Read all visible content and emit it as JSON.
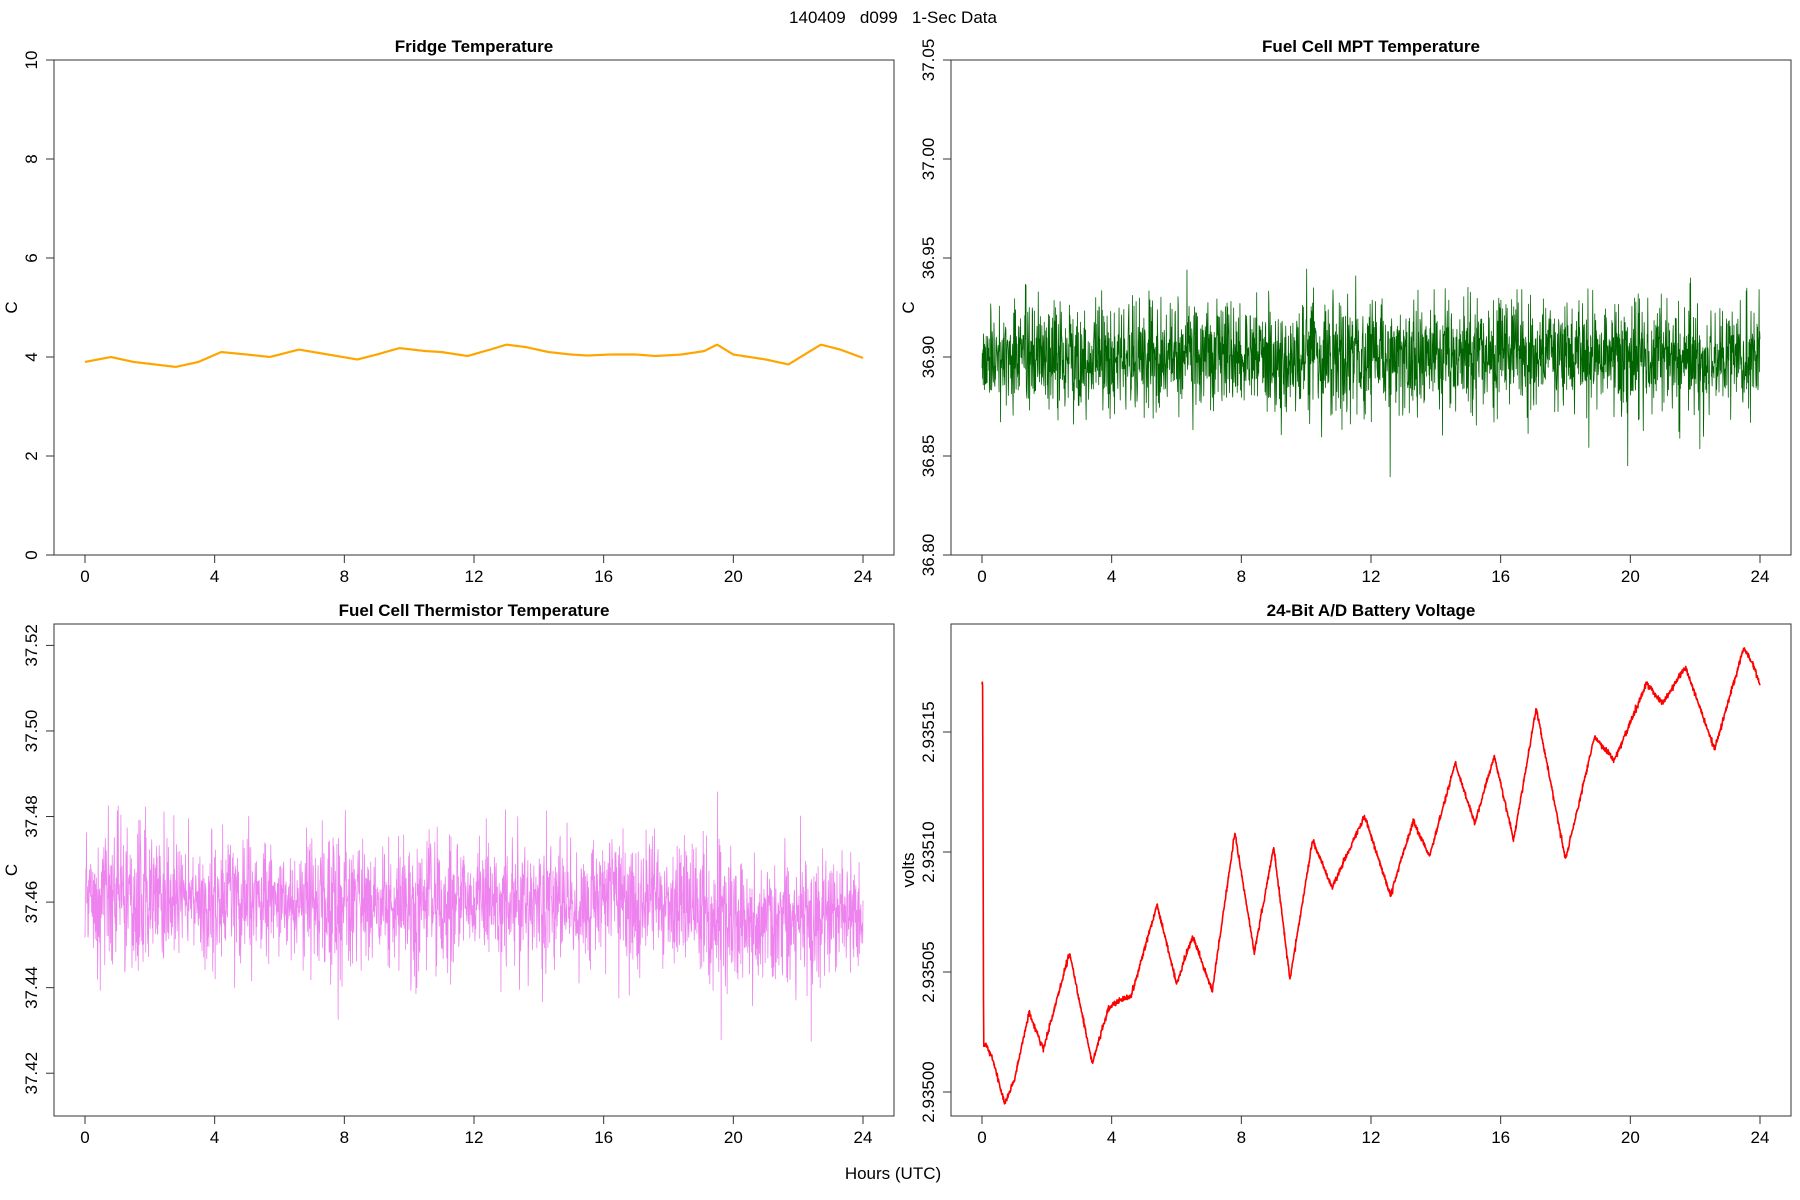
{
  "figure": {
    "main_title": "140409   d099   1-Sec Data",
    "shared_xlabel": "Hours (UTC)"
  },
  "chart_data": [
    {
      "type": "line",
      "title": "Fridge Temperature",
      "ylabel": "C",
      "xlabel": "",
      "xlim": [
        0,
        24
      ],
      "ylim": [
        0,
        10
      ],
      "xticks": [
        0,
        4,
        8,
        12,
        16,
        20,
        24
      ],
      "yticks": [
        0,
        2,
        4,
        6,
        8,
        10
      ],
      "ytick_labels": [
        "0",
        "2",
        "4",
        "6",
        "8",
        "10"
      ],
      "color": "#ffa500",
      "noise": 0,
      "series": [
        {
          "name": "Fridge Temperature",
          "x": [
            0,
            0.8,
            1.5,
            2.8,
            3.5,
            4.2,
            5.0,
            5.7,
            6.6,
            7.5,
            8.4,
            9.0,
            9.7,
            10.5,
            11.0,
            11.8,
            12.5,
            13.0,
            13.6,
            14.3,
            15.0,
            15.5,
            16.2,
            17.0,
            17.6,
            18.4,
            19.1,
            19.5,
            20.0,
            21.0,
            21.7,
            22.2,
            22.7,
            23.3,
            24.0
          ],
          "y": [
            3.9,
            4.0,
            3.9,
            3.8,
            3.9,
            4.1,
            4.05,
            4.0,
            4.15,
            4.05,
            3.95,
            4.05,
            4.18,
            4.12,
            4.1,
            4.02,
            4.15,
            4.25,
            4.2,
            4.1,
            4.05,
            4.03,
            4.05,
            4.05,
            4.02,
            4.05,
            4.12,
            4.25,
            4.05,
            3.95,
            3.85,
            4.05,
            4.25,
            4.15,
            3.98
          ]
        }
      ]
    },
    {
      "type": "line",
      "title": "Fuel Cell MPT Temperature",
      "ylabel": "C",
      "xlabel": "",
      "xlim": [
        0,
        24
      ],
      "ylim": [
        36.8,
        37.05
      ],
      "xticks": [
        0,
        4,
        8,
        12,
        16,
        20,
        24
      ],
      "yticks": [
        36.8,
        36.85,
        36.9,
        36.95,
        37.0,
        37.05
      ],
      "ytick_labels": [
        "36.80",
        "36.85",
        "36.90",
        "36.95",
        "37.00",
        "37.05"
      ],
      "color": "#006400",
      "noise": 0.025,
      "series": [
        {
          "name": "Fuel Cell MPT Temperature",
          "x": [
            0,
            2,
            4,
            6,
            8,
            10,
            12,
            14,
            16,
            18,
            20,
            22,
            24
          ],
          "y": [
            36.9,
            36.9,
            36.9,
            36.9,
            36.9,
            36.9,
            36.9,
            36.9,
            36.9,
            36.9,
            36.9,
            36.9,
            36.9
          ]
        }
      ]
    },
    {
      "type": "line",
      "title": "Fuel Cell Thermistor Temperature",
      "ylabel": "C",
      "xlabel": "",
      "xlim": [
        0,
        24
      ],
      "ylim": [
        37.41,
        37.525
      ],
      "xticks": [
        0,
        4,
        8,
        12,
        16,
        20,
        24
      ],
      "yticks": [
        37.42,
        37.44,
        37.46,
        37.48,
        37.5,
        37.52
      ],
      "ytick_labels": [
        "37.42",
        "37.44",
        "37.46",
        "37.48",
        "37.50",
        "37.52"
      ],
      "color": "#ee82ee",
      "noise": 0.013,
      "series": [
        {
          "name": "Fuel Cell Thermistor Temperature",
          "x": [
            0,
            2,
            4,
            6,
            8,
            10,
            12,
            14,
            16,
            18,
            20,
            22,
            24
          ],
          "y": [
            37.46,
            37.46,
            37.46,
            37.46,
            37.46,
            37.46,
            37.46,
            37.46,
            37.46,
            37.46,
            37.456,
            37.456,
            37.456
          ]
        }
      ]
    },
    {
      "type": "line",
      "title": "24-Bit A/D Battery Voltage",
      "ylabel": "volts",
      "xlabel": "",
      "xlim": [
        0,
        24
      ],
      "ylim": [
        2.93499,
        2.935195
      ],
      "xticks": [
        0,
        4,
        8,
        12,
        16,
        20,
        24
      ],
      "yticks": [
        2.935,
        2.93505,
        2.9351,
        2.93515
      ],
      "ytick_labels": [
        "2.93500",
        "2.93505",
        "2.93510",
        "2.93515"
      ],
      "color": "#ff0000",
      "noise": 6e-07,
      "series": [
        {
          "name": "24-Bit A/D Battery Voltage",
          "x": [
            0,
            0.02,
            0.05,
            0.1,
            0.3,
            0.7,
            1.0,
            1.45,
            1.9,
            2.7,
            3.4,
            3.9,
            4.2,
            4.6,
            5.4,
            6.0,
            6.5,
            7.1,
            7.8,
            8.4,
            9.0,
            9.5,
            10.2,
            10.8,
            11.8,
            12.6,
            13.3,
            13.8,
            14.6,
            15.2,
            15.8,
            16.4,
            17.1,
            18.0,
            18.9,
            19.5,
            20.5,
            21.0,
            21.7,
            22.6,
            23.5,
            23.8,
            24.0
          ],
          "y": [
            2.93517,
            2.93517,
            2.93502,
            2.93502,
            2.935015,
            2.934995,
            2.935005,
            2.935033,
            2.935018,
            2.935058,
            2.935012,
            2.935035,
            2.935038,
            2.93504,
            2.935078,
            2.935045,
            2.935065,
            2.935042,
            2.935108,
            2.935058,
            2.935102,
            2.935047,
            2.935105,
            2.935085,
            2.935115,
            2.935082,
            2.935113,
            2.935098,
            2.935137,
            2.935112,
            2.93514,
            2.935105,
            2.93516,
            2.935097,
            2.935148,
            2.935138,
            2.93517,
            2.935162,
            2.935177,
            2.935143,
            2.935185,
            2.935178,
            2.93517
          ]
        }
      ]
    }
  ]
}
